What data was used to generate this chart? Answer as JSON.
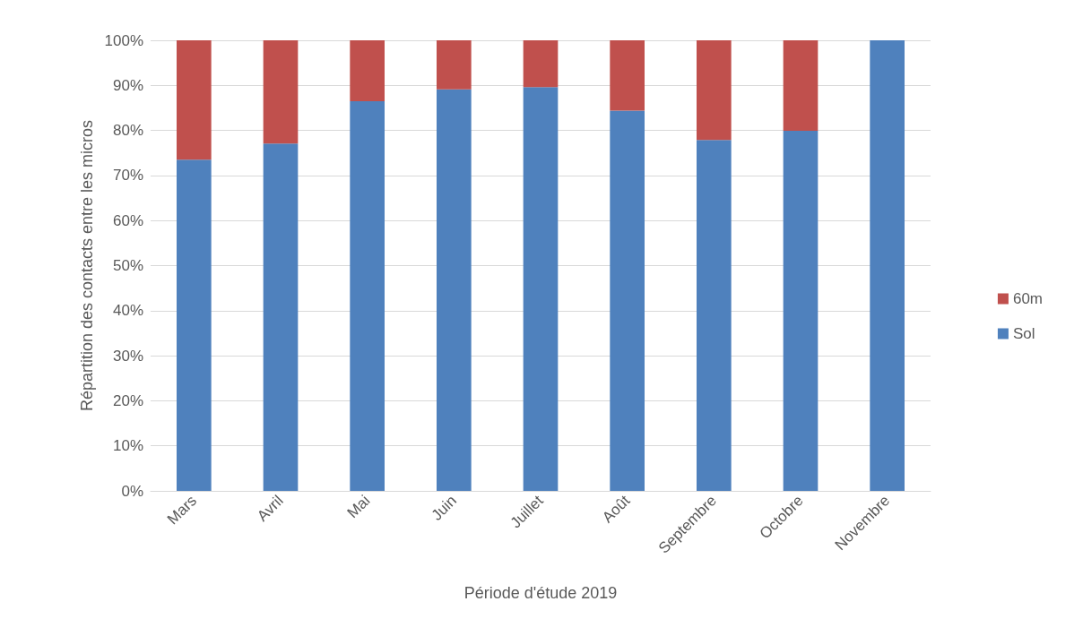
{
  "chart_data": {
    "type": "bar",
    "stacked": true,
    "xlabel": "Période d'étude 2019",
    "ylabel": "Répartition des contacts entre les micros",
    "categories": [
      "Mars",
      "Avril",
      "Mai",
      "Juin",
      "Juillet",
      "Août",
      "Septembre",
      "Octobre",
      "Novembre"
    ],
    "series": [
      {
        "name": "Sol",
        "color": "#4f81bd",
        "values": [
          73.5,
          77.1,
          86.5,
          89.1,
          89.6,
          84.4,
          77.9,
          79.9,
          100
        ]
      },
      {
        "name": "60m",
        "color": "#c0504d",
        "values": [
          26.5,
          22.9,
          13.5,
          10.9,
          10.4,
          15.6,
          22.1,
          20.1,
          0
        ]
      }
    ],
    "ylim": [
      0,
      100
    ],
    "yticks": [
      {
        "value": 0,
        "label": "0%"
      },
      {
        "value": 10,
        "label": "10%"
      },
      {
        "value": 20,
        "label": "20%"
      },
      {
        "value": 30,
        "label": "30%"
      },
      {
        "value": 40,
        "label": "40%"
      },
      {
        "value": 50,
        "label": "50%"
      },
      {
        "value": 60,
        "label": "60%"
      },
      {
        "value": 70,
        "label": "70%"
      },
      {
        "value": 80,
        "label": "80%"
      },
      {
        "value": 90,
        "label": "90%"
      },
      {
        "value": 100,
        "label": "100%"
      }
    ],
    "grid": "y",
    "legend": "right"
  }
}
